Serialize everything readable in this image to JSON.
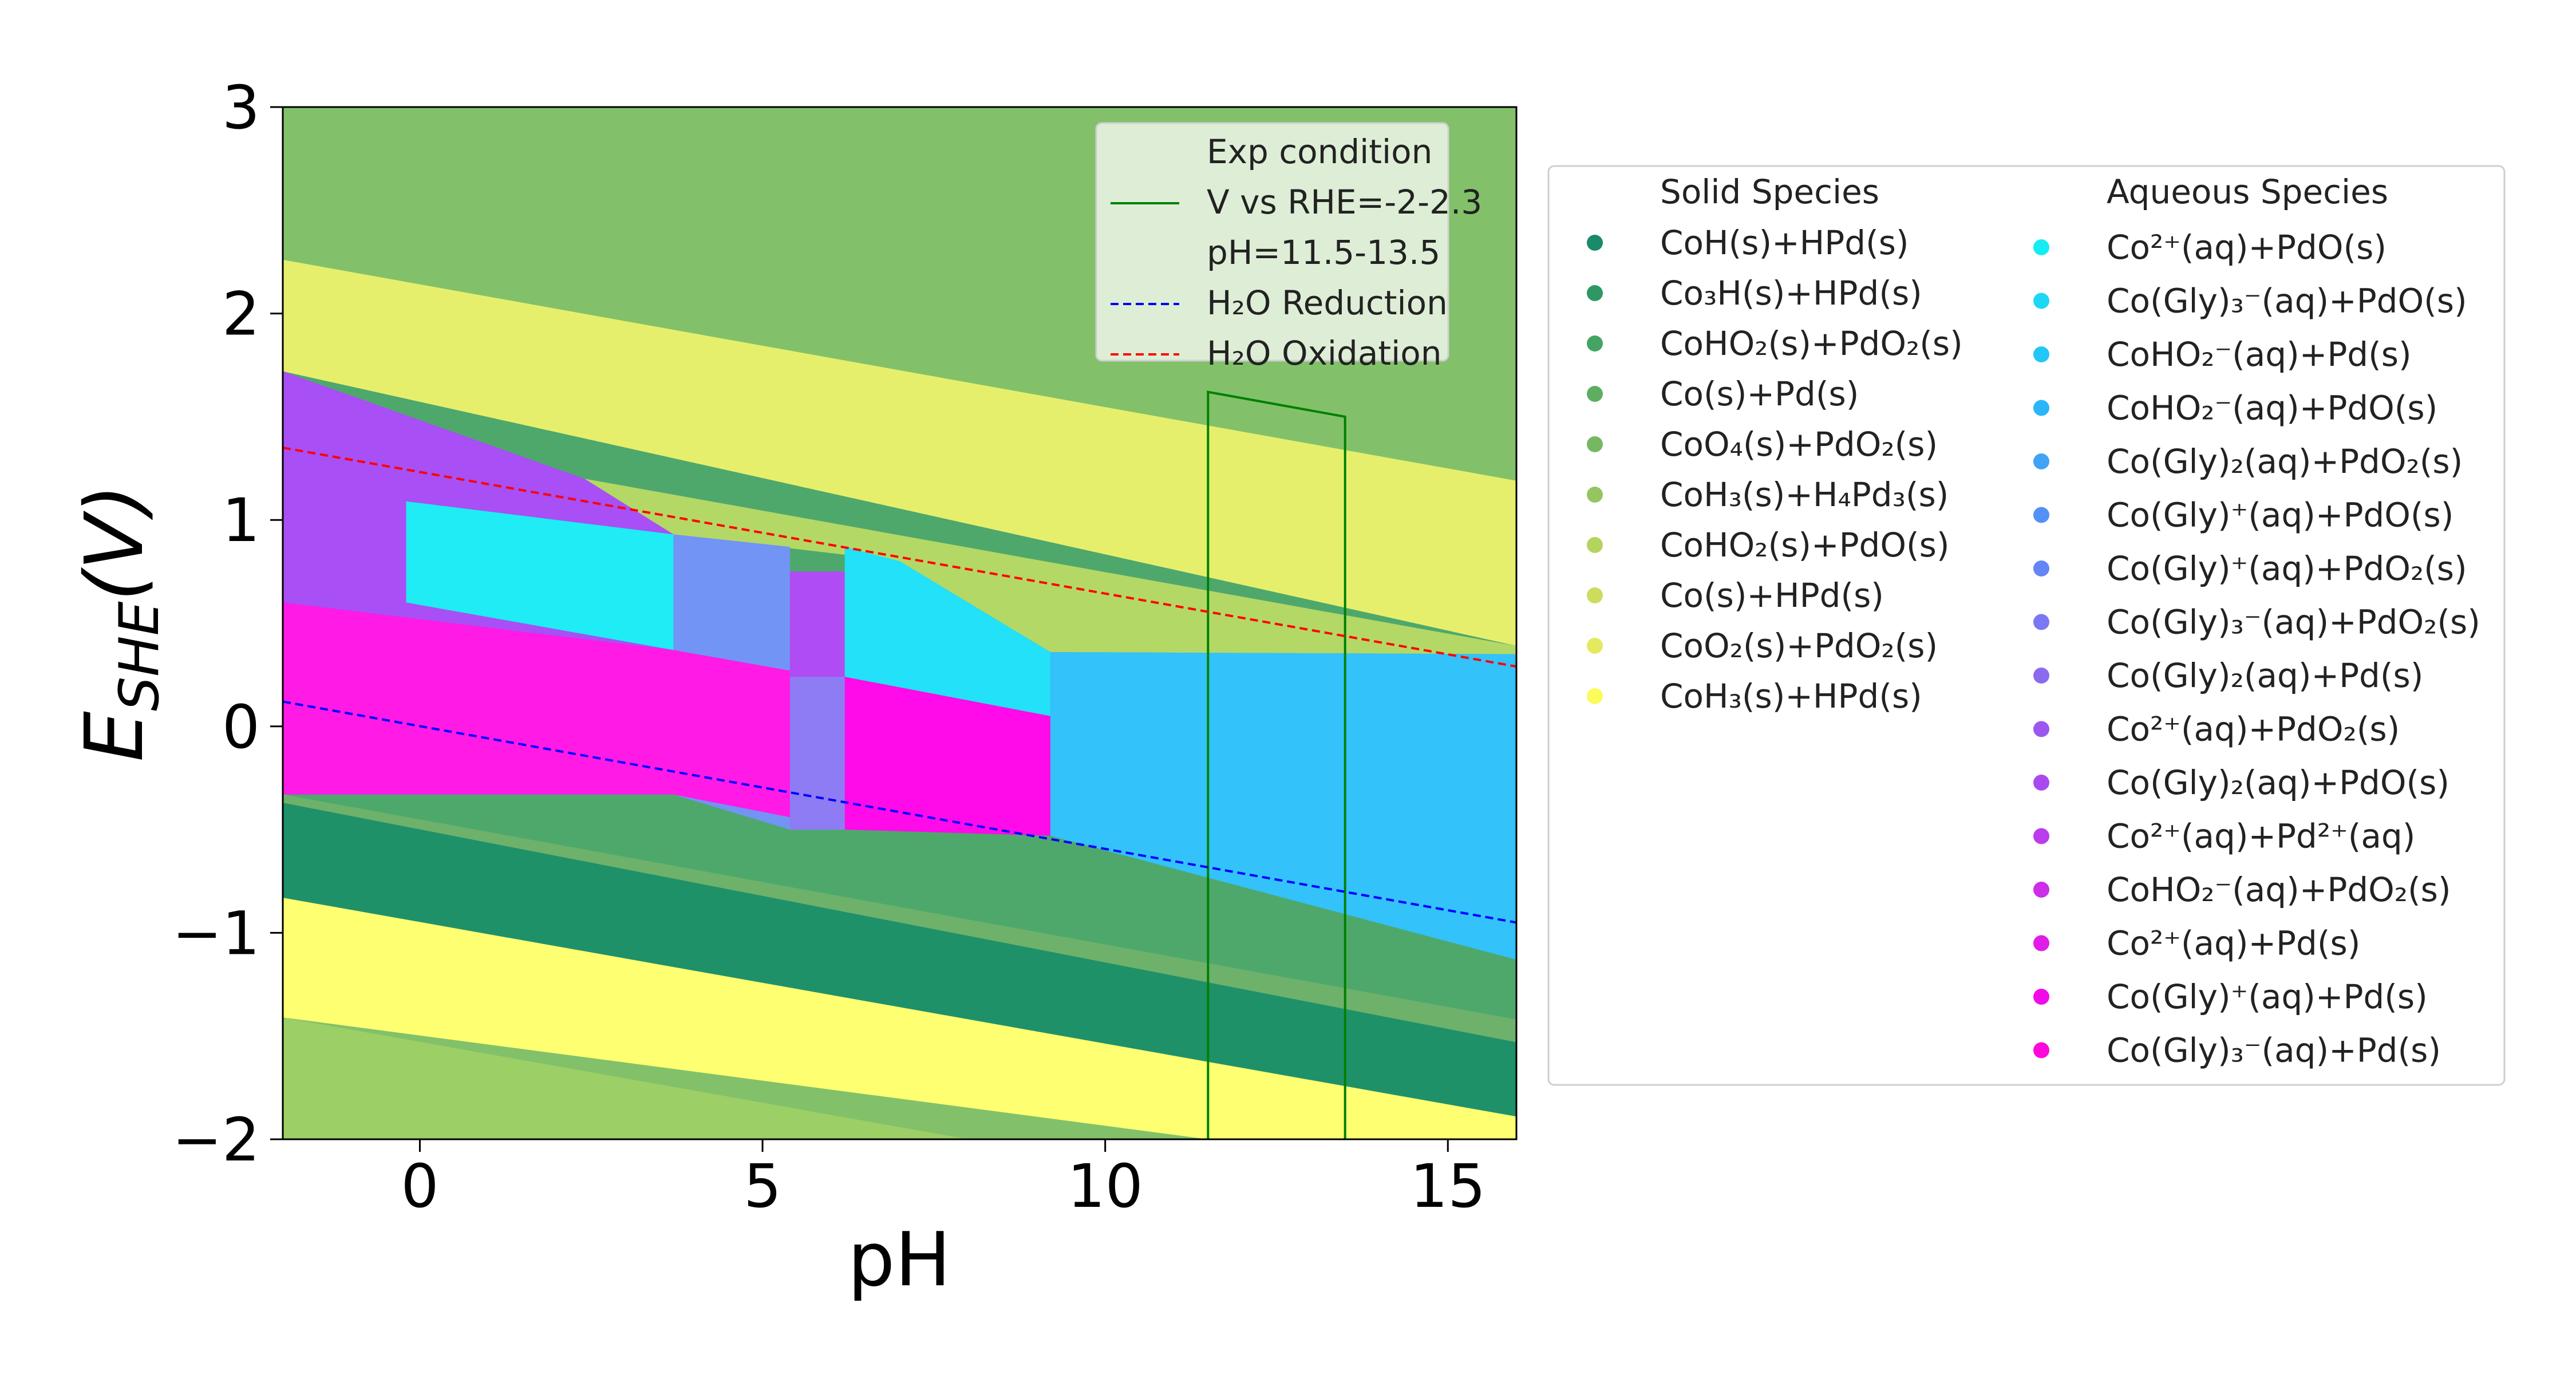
{
  "chart_data": {
    "type": "area",
    "title": "",
    "xlabel": "pH",
    "ylabel": {
      "main": "E",
      "sub": "SHE",
      "paren": "(V)"
    },
    "xlim": [
      -2,
      16
    ],
    "ylim": [
      -2,
      3
    ],
    "xticks": [
      {
        "value": 0,
        "label": "0"
      },
      {
        "value": 5,
        "label": "5"
      },
      {
        "value": 10,
        "label": "10"
      },
      {
        "value": 15,
        "label": "15"
      }
    ],
    "yticks": [
      {
        "value": -2,
        "label": "−2"
      },
      {
        "value": -1,
        "label": "−1"
      },
      {
        "value": 0,
        "label": "0"
      },
      {
        "value": 1,
        "label": "1"
      },
      {
        "value": 2,
        "label": "2"
      },
      {
        "value": 3,
        "label": "3"
      }
    ],
    "grid": false,
    "background_color": "#82c16a",
    "regions": [
      {
        "name": "CoO2(s)+PdO2(s)",
        "color": "#e6ef6c",
        "points": [
          [
            -2,
            2.26
          ],
          [
            16,
            1.19
          ],
          [
            16,
            0.39
          ],
          [
            -2,
            1.72
          ]
        ]
      },
      {
        "name": "CoHO2(s)+PdO2(s)",
        "color": "#4ea86c",
        "points": [
          [
            -2,
            1.72
          ],
          [
            16,
            0.39
          ],
          [
            16,
            -1.42
          ],
          [
            -2,
            -0.33
          ]
        ]
      },
      {
        "name": "Co(s)+Pd(s)",
        "color": "#6db16b",
        "points": [
          [
            -2,
            -0.33
          ],
          [
            16,
            -1.42
          ],
          [
            16,
            -1.53
          ],
          [
            -2,
            -0.37
          ]
        ]
      },
      {
        "name": "CoH(s)+HPd(s)",
        "color": "#1f9169",
        "points": [
          [
            -2,
            -0.37
          ],
          [
            16,
            -1.53
          ],
          [
            16,
            -1.89
          ],
          [
            -2,
            -0.83
          ]
        ]
      },
      {
        "name": "CoH3(s)+HPd(s)",
        "color": "#ffff72",
        "points": [
          [
            -2,
            -0.83
          ],
          [
            16,
            -1.89
          ],
          [
            16,
            -2
          ],
          [
            11.5,
            -2
          ],
          [
            -2,
            -1.41
          ]
        ]
      },
      {
        "name": "CoH3(s)+H4Pd3(s)",
        "color": "#9ccf65",
        "points": [
          [
            -2,
            -1.41
          ],
          [
            8,
            -2
          ],
          [
            -2,
            -2
          ]
        ]
      },
      {
        "name": "CoHO2(s)+PdO(s)",
        "color": "#b4d865",
        "points": [
          [
            2.4,
            1.2
          ],
          [
            16,
            0.39
          ],
          [
            16,
            0.35
          ],
          [
            9.2,
            0.36
          ],
          [
            7,
            0.8
          ],
          [
            3.7,
            0.93
          ]
        ]
      },
      {
        "name": "Co2+(aq)+PdO2(s)",
        "color": "#a84ff5",
        "points": [
          [
            -2,
            1.72
          ],
          [
            2.4,
            1.2
          ],
          [
            3.7,
            0.93
          ],
          [
            3.7,
            -0.33
          ],
          [
            -2,
            -0.33
          ]
        ]
      },
      {
        "name": "Co(Gly)+(aq)+PdO2(s)",
        "color": "#7294f5",
        "points": [
          [
            3.7,
            0.93
          ],
          [
            5.4,
            0.87
          ],
          [
            5.4,
            0.75
          ],
          [
            6.2,
            0.75
          ],
          [
            6.2,
            -0.5
          ],
          [
            5.4,
            -0.5
          ],
          [
            3.7,
            -0.33
          ]
        ]
      },
      {
        "name": "Co2+(aq)+Pd2+(aq)",
        "color": "#b04cf4",
        "points": [
          [
            5.4,
            0.75
          ],
          [
            6.2,
            0.75
          ],
          [
            6.2,
            0.24
          ],
          [
            5.4,
            0.24
          ]
        ]
      },
      {
        "name": "Co(Gly)2(aq)+PdO2(s)",
        "color": "#8e7cf5",
        "points": [
          [
            5.4,
            0.24
          ],
          [
            6.2,
            0.24
          ],
          [
            6.2,
            -0.5
          ],
          [
            5.4,
            -0.5
          ]
        ]
      },
      {
        "name": "Co(Gly)3−(aq)+PdO(s)",
        "color": "#22e1f9",
        "points": [
          [
            6.2,
            0.87
          ],
          [
            7,
            0.8
          ],
          [
            9.2,
            0.36
          ],
          [
            9.2,
            0.05
          ],
          [
            6.2,
            0.24
          ]
        ]
      },
      {
        "name": "Co2+(aq)+PdO(s)",
        "color": "#1fecf4",
        "points": [
          [
            -0.2,
            1.09
          ],
          [
            3.7,
            0.93
          ],
          [
            3.7,
            0.37
          ],
          [
            -0.2,
            0.6
          ]
        ]
      },
      {
        "name": "Co(Gly)3−(aq)+Pd(s)",
        "color": "#ff1ae5",
        "points": [
          [
            -2,
            0.6
          ],
          [
            3.7,
            0.37
          ],
          [
            5.4,
            0.27
          ],
          [
            5.4,
            -0.44
          ],
          [
            3.7,
            -0.33
          ],
          [
            -2,
            -0.33
          ]
        ]
      },
      {
        "name": "Co(Gly)+(aq)+Pd(s)",
        "color": "#ff0ae9",
        "points": [
          [
            6.2,
            0.24
          ],
          [
            9.2,
            0.05
          ],
          [
            9.2,
            -0.53
          ],
          [
            6.2,
            -0.5
          ]
        ]
      },
      {
        "name": "CoHO2−(aq)+PdO(s)",
        "color": "#33c2fa",
        "points": [
          [
            9.2,
            0.36
          ],
          [
            16,
            0.35
          ],
          [
            16,
            -1.13
          ],
          [
            9.2,
            -0.53
          ]
        ]
      }
    ],
    "series": [
      {
        "name": "Exp condition\nV vs RHE=-2-2.3\npH=11.5-13.5",
        "color": "#008000",
        "dash": "solid",
        "x": [
          11.5,
          11.5,
          13.5,
          13.5
        ],
        "y": [
          -2,
          1.62,
          1.5,
          -2
        ]
      },
      {
        "name": "H2O Reduction",
        "color": "#0000ff",
        "dash": "dashed",
        "x": [
          -2,
          16
        ],
        "y": [
          0.12,
          -0.95
        ]
      },
      {
        "name": "H2O Oxidation",
        "color": "#ff0000",
        "dash": "dashed",
        "x": [
          -2,
          16
        ],
        "y": [
          1.35,
          0.29
        ]
      }
    ],
    "plot_legend": {
      "position": "upper right",
      "entries": [
        {
          "lines": [
            "Exp condition",
            "V vs RHE=-2-2.3",
            "pH=11.5-13.5"
          ],
          "color": "#008000",
          "dash": "solid"
        },
        {
          "lines": [
            "H₂O Reduction"
          ],
          "color": "#0000ff",
          "dash": "dashed"
        },
        {
          "lines": [
            "H₂O Oxidation"
          ],
          "color": "#ff0000",
          "dash": "dashed"
        }
      ]
    },
    "species_legend": {
      "position": "right of plot",
      "solid_title": "Solid Species",
      "aqueous_title": "Aqueous Species",
      "solid": [
        {
          "label": "CoH(s)+HPd(s)",
          "color": "#1a8a6a"
        },
        {
          "label": "Co₃H(s)+HPd(s)",
          "color": "#2e9865"
        },
        {
          "label": "CoHO₂(s)+PdO₂(s)",
          "color": "#44a464"
        },
        {
          "label": "Co(s)+Pd(s)",
          "color": "#5eae62"
        },
        {
          "label": "CoO₄(s)+PdO₂(s)",
          "color": "#76b862"
        },
        {
          "label": "CoH₃(s)+H₄Pd₃(s)",
          "color": "#94c560"
        },
        {
          "label": "CoHO₂(s)+PdO(s)",
          "color": "#b4d460"
        },
        {
          "label": "Co(s)+HPd(s)",
          "color": "#cddc5e"
        },
        {
          "label": "CoO₂(s)+PdO₂(s)",
          "color": "#e4ea60"
        },
        {
          "label": "CoH₃(s)+HPd(s)",
          "color": "#fbfb5c"
        }
      ],
      "aqueous": [
        {
          "label": "Co²⁺(aq)+PdO(s)",
          "color": "#16ecf2"
        },
        {
          "label": "Co(Gly)₃⁻(aq)+PdO(s)",
          "color": "#1cd7f5"
        },
        {
          "label": "CoHO₂⁻(aq)+Pd(s)",
          "color": "#22c7f7"
        },
        {
          "label": "CoHO₂⁻(aq)+PdO(s)",
          "color": "#2cb6f8"
        },
        {
          "label": "Co(Gly)₂(aq)+PdO₂(s)",
          "color": "#40a3f7"
        },
        {
          "label": "Co(Gly)⁺(aq)+PdO(s)",
          "color": "#5292f7"
        },
        {
          "label": "Co(Gly)⁺(aq)+PdO₂(s)",
          "color": "#6485f5"
        },
        {
          "label": "Co(Gly)₃⁻(aq)+PdO₂(s)",
          "color": "#7a78f2"
        },
        {
          "label": "Co(Gly)₂(aq)+Pd(s)",
          "color": "#8a6aef"
        },
        {
          "label": "Co²⁺(aq)+PdO₂(s)",
          "color": "#9b58ee"
        },
        {
          "label": "Co(Gly)₂(aq)+PdO(s)",
          "color": "#a94af0"
        },
        {
          "label": "Co²⁺(aq)+Pd²⁺(aq)",
          "color": "#bb3ced"
        },
        {
          "label": "CoHO₂⁻(aq)+PdO₂(s)",
          "color": "#cc2ee9"
        },
        {
          "label": "Co²⁺(aq)+Pd(s)",
          "color": "#e01ce6"
        },
        {
          "label": "Co(Gly)⁺(aq)+Pd(s)",
          "color": "#f00ce9"
        },
        {
          "label": "Co(Gly)₃⁻(aq)+Pd(s)",
          "color": "#ff08dc"
        }
      ]
    }
  }
}
